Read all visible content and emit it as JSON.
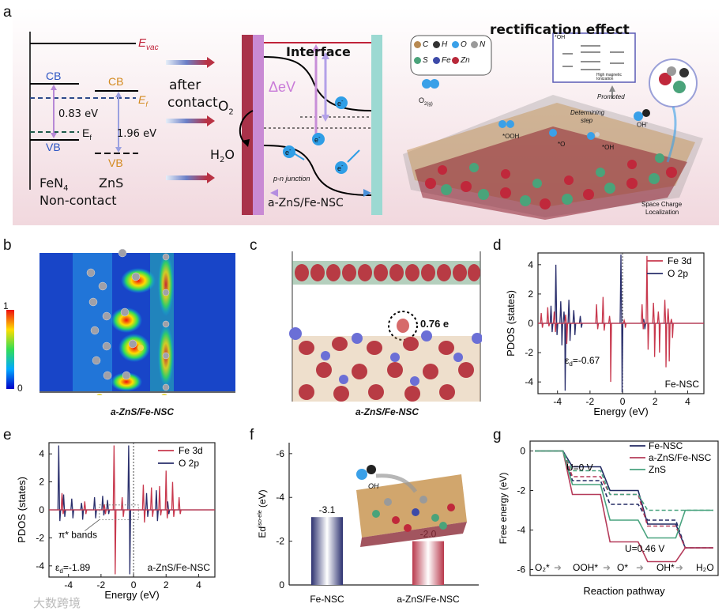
{
  "panel_labels": {
    "a": "a",
    "b": "b",
    "c": "c",
    "d": "d",
    "e": "e",
    "f": "f",
    "g": "g"
  },
  "panel_a": {
    "evac": "E",
    "evac_sub": "vac",
    "left_cb": "CB",
    "left_vb": "VB",
    "left_gap": "0.83 eV",
    "left_ef": "E",
    "left_ef_sub": "f",
    "right_cb": "CB",
    "right_vb": "VB",
    "right_gap": "1.96 eV",
    "right_ef": "E",
    "right_ef_sub": "f",
    "fen4": "FeN",
    "fen4_sub": "4",
    "zns": "ZnS",
    "noncontact": "Non-contact",
    "after_contact_1": "after",
    "after_contact_2": "contact",
    "o2": "O",
    "o2_sub": "2",
    "h2o": "H",
    "h2o_sub": "2",
    "h2o_end": "O",
    "interface": "Interface",
    "delta_ev": "ΔeV",
    "electron": "e",
    "electron_sup": "-",
    "pn_junction": "p-n junction",
    "hetero": "a-ZnS/Fe-NSC",
    "rectification": "rectification effect",
    "legend": [
      {
        "sym": "C",
        "color": "#b88a52"
      },
      {
        "sym": "H",
        "color": "#333333"
      },
      {
        "sym": "O",
        "color": "#3aa0e8"
      },
      {
        "sym": "N",
        "color": "#9a9a9a"
      },
      {
        "sym": "S",
        "color": "#4aa37a"
      },
      {
        "sym": "Fe",
        "color": "#3d4aa8"
      },
      {
        "sym": "Zn",
        "color": "#b8293a"
      }
    ],
    "o2g": "O",
    "o2g_sub": "2(g)",
    "ooh": "*OOH",
    "ostar": "*O",
    "ohstar": "*OH",
    "oh_minus": "OH",
    "determining": "Determining",
    "step": "step",
    "promoted": "Promoted",
    "space_charge_1": "Space Charge",
    "space_charge_2": "Localization",
    "inset_label": "*OH",
    "inset_hm": "High magnetic",
    "inset_hm2": "Ionization"
  },
  "panel_b": {
    "cb_max": "1",
    "cb_min": "0",
    "caption": "a-ZnS/Fe-NSC"
  },
  "panel_c": {
    "charge": "0.76 e",
    "caption": "a-ZnS/Fe-NSC"
  },
  "panel_d": {
    "legend": [
      "Fe 3d",
      "O 2p"
    ],
    "ylabel": "PDOS (states)",
    "xlabel": "Energy (eV)",
    "eps": "ε",
    "eps_sub": "d",
    "eps_val": "=-0.67",
    "tag": "Fe-NSC",
    "yticks": [
      "4",
      "2",
      "0",
      "-2",
      "-4"
    ],
    "xticks": [
      "-4",
      "-2",
      "0",
      "2",
      "4"
    ]
  },
  "panel_e": {
    "legend": [
      "Fe 3d",
      "O 2p"
    ],
    "ylabel": "PDOS (states)",
    "xlabel": "Energy (eV)",
    "pi_bands": "π* bands",
    "eps": "ε",
    "eps_sub": "d",
    "eps_val": "=-1.89",
    "tag": "a-ZnS/Fe-NSC",
    "yticks": [
      "4",
      "2",
      "0",
      "-2",
      "-4"
    ],
    "xticks": [
      "-4",
      "-2",
      "0",
      "2",
      "4"
    ]
  },
  "panel_f": {
    "ylabel": "Ed",
    "ylabel_sup": "iso-ele",
    "ylabel_unit": " (eV)",
    "yticks": [
      "-6",
      "-4",
      "-2",
      "0"
    ],
    "oh_label": "OH",
    "colors": {
      "fensc": "#2c3170",
      "azns": "#b8384b"
    }
  },
  "panel_g": {
    "legend": [
      "Fe-NSC",
      "a-ZnS/Fe-NSC",
      "ZnS"
    ],
    "colors": [
      "#232a63",
      "#b53b5a",
      "#49a37f"
    ],
    "ylabel": "Free energy (eV)",
    "xlabel": "Reaction pathway",
    "u0": "U=0 V",
    "u046": "U=0.46 V",
    "yticks": [
      "0",
      "-2",
      "-4",
      "-6"
    ],
    "steps": [
      "O₂*",
      "OOH*",
      "O*",
      "OH*",
      "H₂O"
    ]
  },
  "chart_data": [
    {
      "type": "bar",
      "categories": [
        "Fe-NSC",
        "a-ZnS/Fe-NSC"
      ],
      "values": [
        -3.1,
        -2.0
      ],
      "value_labels": [
        "-3.1",
        "-2.0"
      ],
      "ylim": [
        0,
        -6.5
      ]
    },
    {
      "type": "line",
      "categories": [
        "O₂*",
        "OOH*",
        "O*",
        "OH*",
        "H₂O"
      ],
      "series": [
        {
          "name": "Fe-NSC",
          "U0": [
            0,
            -1.5,
            -2.7,
            -3.5,
            -4.9
          ],
          "U046": [
            0,
            -0.8,
            -2.0,
            -3.7,
            -4.9
          ]
        },
        {
          "name": "a-ZnS/Fe-NSC",
          "U0": [
            0,
            -1.3,
            -2.2,
            -3.8,
            -4.9
          ],
          "U046": [
            0,
            -2.2,
            -4.6,
            -5.6,
            -4.9
          ]
        },
        {
          "name": "ZnS",
          "U0": [
            0,
            -1.0,
            -2.2,
            -3.0,
            -3.0
          ],
          "U046": [
            0,
            -1.7,
            -3.5,
            -4.4,
            -3.0
          ]
        }
      ],
      "ylim": [
        -6.3,
        0.5
      ]
    }
  ],
  "watermark": "大数跨境"
}
